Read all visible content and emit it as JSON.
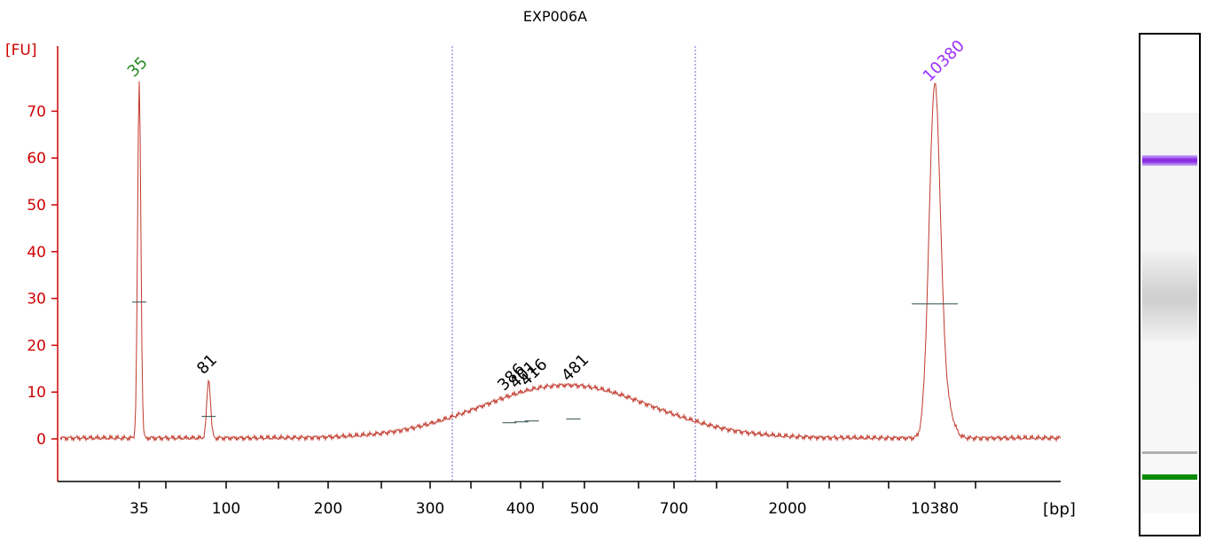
{
  "chart_data": {
    "type": "line",
    "title": "EXP006A",
    "ylabel": "[FU]",
    "xlabel": "[bp]",
    "ylim": [
      -9,
      80
    ],
    "yticks": [
      0,
      10,
      20,
      30,
      40,
      50,
      60,
      70
    ],
    "xtick_labels": [
      "35",
      "100",
      "200",
      "300",
      "400",
      "500",
      "700",
      "2000",
      "10380"
    ],
    "series": [
      {
        "values_description": "electropherogram fluorescence trace",
        "peaks": [
          {
            "bp": 35,
            "fu": 76,
            "color": "#228b22"
          },
          {
            "bp": 81,
            "fu": 12.5,
            "color": "#000000"
          },
          {
            "bp": 386,
            "fu": 9,
            "color": "#000000"
          },
          {
            "bp": 401,
            "fu": 9.5,
            "color": "#000000"
          },
          {
            "bp": 416,
            "fu": 10,
            "color": "#000000"
          },
          {
            "bp": 481,
            "fu": 11,
            "color": "#000000"
          },
          {
            "bp": 10380,
            "fu": 75,
            "color": "#9b30ff"
          }
        ]
      }
    ],
    "peak_labels": [
      "35",
      "81",
      "386",
      "401",
      "416",
      "481",
      "10380"
    ],
    "colors": {
      "axis": "#d00000",
      "trace": "#c0392b",
      "marker_low": "#228b22",
      "marker_high": "#9b30ff",
      "region": "#6a6ac8"
    }
  }
}
